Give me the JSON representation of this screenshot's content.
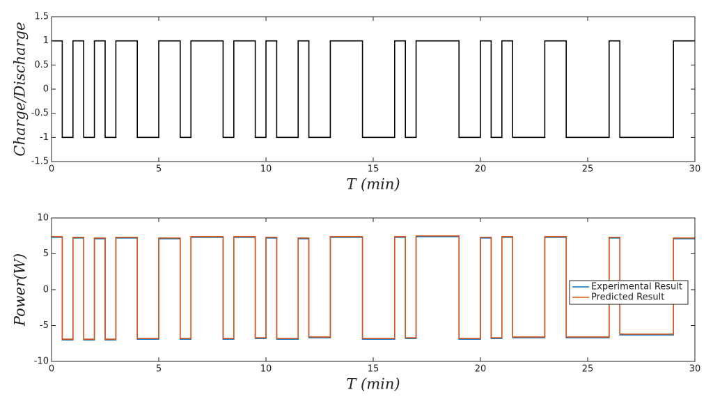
{
  "chart_data": [
    {
      "type": "line",
      "step": "post",
      "color": "#000000",
      "xlabel": "T (min)",
      "ylabel": "Charge/Discharge",
      "x": [
        0,
        0.5,
        1,
        1.5,
        2,
        2.5,
        3,
        4,
        5,
        6,
        6.5,
        8,
        8.5,
        9.5,
        10,
        10.5,
        11.5,
        12,
        13,
        14.5,
        16,
        16.5,
        17,
        19,
        20,
        20.5,
        21,
        21.5,
        23,
        24,
        26,
        26.5,
        29,
        30
      ],
      "values": [
        1,
        -1,
        1,
        -1,
        1,
        -1,
        1,
        -1,
        1,
        -1,
        1,
        -1,
        1,
        -1,
        1,
        -1,
        1,
        -1,
        1,
        -1,
        1,
        -1,
        1,
        -1,
        1,
        -1,
        1,
        -1,
        1,
        -1,
        1,
        -1,
        1,
        1
      ],
      "xlim": [
        0,
        30
      ],
      "xticks": [
        0,
        5,
        10,
        15,
        20,
        25,
        30
      ],
      "ylim": [
        -1.5,
        1.5
      ],
      "yticks": [
        -1.5,
        -1,
        -0.5,
        0,
        0.5,
        1,
        1.5
      ]
    },
    {
      "type": "line",
      "step": "post",
      "xlabel": "T (min)",
      "ylabel": "Power(W)",
      "legend": "right",
      "x": [
        0,
        0.5,
        1,
        1.5,
        2,
        2.5,
        3,
        4,
        5,
        6,
        6.5,
        8,
        8.5,
        9.5,
        10,
        10.5,
        11.5,
        12,
        13,
        14.5,
        16,
        16.5,
        17,
        19,
        20,
        20.5,
        21,
        21.5,
        23,
        24,
        26,
        26.5,
        29,
        30
      ],
      "series": [
        {
          "name": "Experimental Result",
          "color": "#0072bd",
          "values": [
            7.3,
            -7.0,
            7.2,
            -7.0,
            7.1,
            -7.0,
            7.2,
            -6.9,
            7.1,
            -6.9,
            7.3,
            -6.9,
            7.3,
            -6.8,
            7.2,
            -6.9,
            7.1,
            -6.7,
            7.3,
            -6.9,
            7.3,
            -6.8,
            7.4,
            -6.9,
            7.2,
            -6.8,
            7.3,
            -6.7,
            7.3,
            -6.7,
            7.2,
            -6.3,
            7.1,
            7.1
          ]
        },
        {
          "name": "Predicted Result",
          "color": "#d95319",
          "values": [
            7.4,
            -6.9,
            7.3,
            -6.9,
            7.2,
            -6.9,
            7.3,
            -6.8,
            7.2,
            -6.8,
            7.4,
            -6.8,
            7.4,
            -6.7,
            7.3,
            -6.8,
            7.2,
            -6.6,
            7.4,
            -6.8,
            7.4,
            -6.7,
            7.5,
            -6.8,
            7.3,
            -6.7,
            7.4,
            -6.6,
            7.4,
            -6.6,
            7.3,
            -6.2,
            7.2,
            7.2
          ]
        }
      ],
      "xlim": [
        0,
        30
      ],
      "xticks": [
        0,
        5,
        10,
        15,
        20,
        25,
        30
      ],
      "ylim": [
        -10,
        10
      ],
      "yticks": [
        -10,
        -5,
        0,
        5,
        10
      ]
    }
  ]
}
